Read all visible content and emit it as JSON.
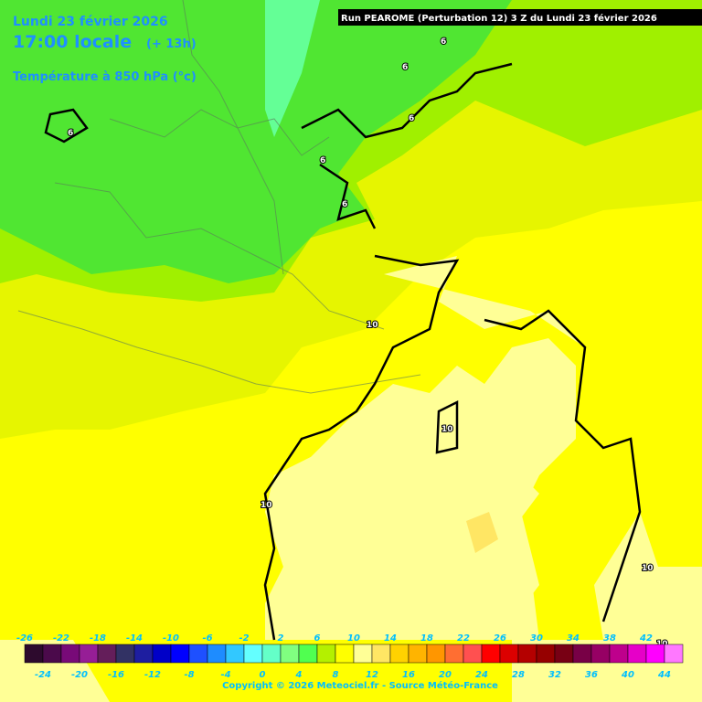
{
  "header": {
    "date": "Lundi 23 février 2026",
    "time": "17:00 locale",
    "lead": "(+ 13h)",
    "parameter": "Température à 850 hPa (°c)",
    "run": "Run PEAROME (Perturbation 12) 3 Z du Lundi 23 février 2026"
  },
  "contour_labels": [
    "6",
    "6",
    "6",
    "6",
    "6",
    "6",
    "10",
    "10",
    "10",
    "10",
    "10"
  ],
  "legend": {
    "top_labels": [
      -26,
      -22,
      -18,
      -14,
      -10,
      -6,
      -2,
      2,
      6,
      10,
      14,
      18,
      22,
      26,
      30,
      34,
      38,
      42
    ],
    "bottom_labels": [
      -24,
      -20,
      -16,
      -12,
      -8,
      -4,
      0,
      4,
      8,
      12,
      16,
      20,
      24,
      28,
      32,
      36,
      40,
      44
    ],
    "colors": [
      "#2d0a2d",
      "#4b0a4b",
      "#780a78",
      "#961e96",
      "#641e5a",
      "#323264",
      "#1e1ea0",
      "#0000c8",
      "#0000ff",
      "#1e50ff",
      "#1e8cff",
      "#32c8ff",
      "#64ffff",
      "#64ffc8",
      "#80ff80",
      "#50ff50",
      "#b4f000",
      "#ffff00",
      "#ffff96",
      "#ffe664",
      "#ffd200",
      "#ffb400",
      "#ff9600",
      "#ff6e32",
      "#ff5050",
      "#ff0000",
      "#dc0000",
      "#b40000",
      "#960000",
      "#780014",
      "#780046",
      "#960064",
      "#be008c",
      "#e600c8",
      "#ff00ff",
      "#ff78ff"
    ]
  },
  "copyright": "Copyright © 2026 Meteociel.fr - Source Météo-France"
}
